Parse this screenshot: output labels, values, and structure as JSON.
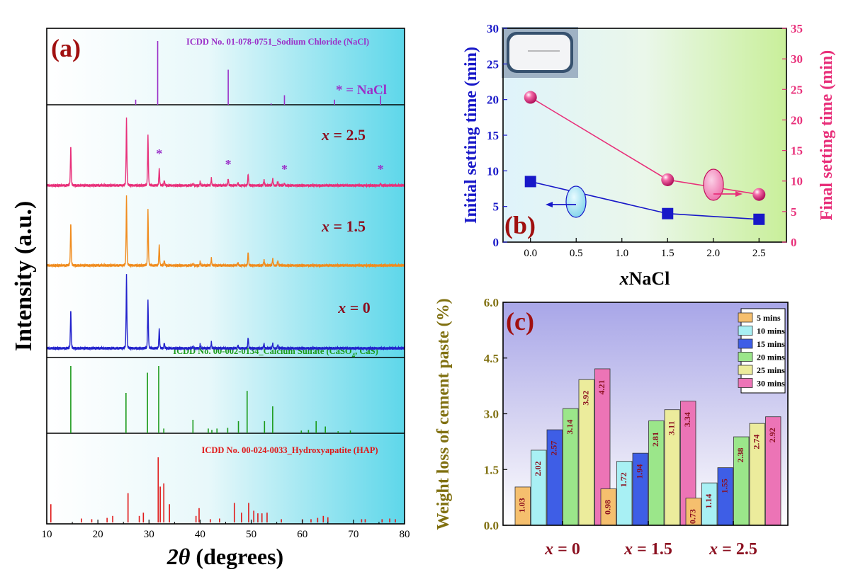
{
  "chart_data": [
    {
      "panel": "a",
      "type": "line",
      "panel_label": "(a)",
      "xlabel": "2θ (degrees)",
      "ylabel": "Intensity (a.u.)",
      "xlim": [
        10,
        80
      ],
      "x_ticks": [
        10,
        20,
        30,
        40,
        50,
        60,
        70,
        80
      ],
      "reference_patterns": [
        {
          "label": "ICDD No. 01-078-0751_Sodium Chloride (NaCl)",
          "color": "#9b30c8",
          "peaks": [
            [
              27.4,
              0.08
            ],
            [
              31.7,
              1.0
            ],
            [
              45.5,
              0.55
            ],
            [
              53.9,
              0.02
            ],
            [
              56.5,
              0.15
            ],
            [
              66.3,
              0.08
            ],
            [
              75.3,
              0.14
            ]
          ]
        },
        {
          "label": "ICDD No. 00-002-0134_Calcium Sulfate (CaSO4, CaS)",
          "color": "#1a9a1a",
          "peaks": [
            [
              14.7,
              1.0
            ],
            [
              25.5,
              0.6
            ],
            [
              29.7,
              0.9
            ],
            [
              31.9,
              1.0
            ],
            [
              32.9,
              0.07
            ],
            [
              38.6,
              0.2
            ],
            [
              41.6,
              0.07
            ],
            [
              42.3,
              0.05
            ],
            [
              43.3,
              0.07
            ],
            [
              45.4,
              0.08
            ],
            [
              47.5,
              0.18
            ],
            [
              49.2,
              0.63
            ],
            [
              52.6,
              0.18
            ],
            [
              54.2,
              0.4
            ],
            [
              59.8,
              0.04
            ],
            [
              61.2,
              0.05
            ],
            [
              62.7,
              0.18
            ],
            [
              64.5,
              0.1
            ],
            [
              67.0,
              0.03
            ],
            [
              69.4,
              0.04
            ]
          ]
        },
        {
          "label": "ICDD No. 00-024-0033_Hydroxyapatite (HAP)",
          "color": "#e01818",
          "peaks": [
            [
              10.8,
              0.28
            ],
            [
              16.8,
              0.06
            ],
            [
              18.8,
              0.05
            ],
            [
              21.8,
              0.07
            ],
            [
              22.9,
              0.1
            ],
            [
              25.9,
              0.45
            ],
            [
              28.1,
              0.1
            ],
            [
              28.9,
              0.15
            ],
            [
              31.8,
              1.0
            ],
            [
              32.2,
              0.55
            ],
            [
              32.9,
              0.6
            ],
            [
              34.0,
              0.28
            ],
            [
              39.2,
              0.1
            ],
            [
              39.8,
              0.22
            ],
            [
              42.0,
              0.05
            ],
            [
              43.8,
              0.06
            ],
            [
              46.7,
              0.3
            ],
            [
              48.1,
              0.15
            ],
            [
              49.5,
              0.3
            ],
            [
              50.5,
              0.18
            ],
            [
              51.3,
              0.14
            ],
            [
              52.1,
              0.14
            ],
            [
              53.1,
              0.15
            ],
            [
              55.9,
              0.05
            ],
            [
              60.0,
              0.05
            ],
            [
              61.7,
              0.05
            ],
            [
              63.0,
              0.07
            ],
            [
              64.1,
              0.1
            ],
            [
              65.0,
              0.08
            ],
            [
              71.6,
              0.05
            ],
            [
              72.3,
              0.05
            ],
            [
              75.6,
              0.05
            ],
            [
              77.1,
              0.06
            ],
            [
              78.2,
              0.05
            ]
          ]
        }
      ],
      "series": [
        {
          "name": "x = 2.5",
          "color": "#e8307a",
          "peaks": [
            [
              14.7,
              0.58
            ],
            [
              25.6,
              0.95
            ],
            [
              29.8,
              0.72
            ],
            [
              32.0,
              0.25
            ],
            [
              33.0,
              0.07
            ],
            [
              38.6,
              0.03
            ],
            [
              40.0,
              0.05
            ],
            [
              42.2,
              0.1
            ],
            [
              45.5,
              0.1
            ],
            [
              47.4,
              0.04
            ],
            [
              49.4,
              0.17
            ],
            [
              52.5,
              0.08
            ],
            [
              54.2,
              0.1
            ],
            [
              55.2,
              0.06
            ],
            [
              56.5,
              0.03
            ],
            [
              75.3,
              0.03
            ]
          ],
          "markers": [
            32.0,
            45.5,
            56.5,
            75.3
          ]
        },
        {
          "name": "x = 1.5",
          "color": "#f08c1e",
          "peaks": [
            [
              14.7,
              0.62
            ],
            [
              25.6,
              0.98
            ],
            [
              29.8,
              0.8
            ],
            [
              32.0,
              0.3
            ],
            [
              33.0,
              0.07
            ],
            [
              38.6,
              0.03
            ],
            [
              40.0,
              0.05
            ],
            [
              42.2,
              0.1
            ],
            [
              47.4,
              0.04
            ],
            [
              49.4,
              0.2
            ],
            [
              52.5,
              0.08
            ],
            [
              54.2,
              0.1
            ],
            [
              55.2,
              0.07
            ]
          ],
          "markers": []
        },
        {
          "name": "x = 0",
          "color": "#2222cc",
          "peaks": [
            [
              14.7,
              0.53
            ],
            [
              25.6,
              0.98
            ],
            [
              29.8,
              0.65
            ],
            [
              32.0,
              0.27
            ],
            [
              33.0,
              0.07
            ],
            [
              38.6,
              0.03
            ],
            [
              40.0,
              0.05
            ],
            [
              42.2,
              0.08
            ],
            [
              47.4,
              0.04
            ],
            [
              49.4,
              0.15
            ],
            [
              52.5,
              0.06
            ],
            [
              54.2,
              0.07
            ],
            [
              55.2,
              0.05
            ]
          ],
          "markers": []
        }
      ],
      "annotation": "* = NaCl",
      "marker_symbol": "*"
    },
    {
      "panel": "b",
      "type": "line",
      "panel_label": "(b)",
      "xlabel_prefix": "x",
      "xlabel_suffix": "NaCl",
      "xlim": [
        -0.3,
        2.8
      ],
      "x_ticks": [
        "0.0",
        "0.5",
        "1.0",
        "1.5",
        "2.0",
        "2.5"
      ],
      "y_left": {
        "label": "Initial setting time (min)",
        "ylim": [
          0,
          30
        ],
        "ticks": [
          "0",
          "5",
          "10",
          "15",
          "20",
          "25",
          "30"
        ],
        "color": "#1818c8"
      },
      "y_right": {
        "label": "Final setting time (min)",
        "ylim": [
          0,
          35
        ],
        "ticks": [
          "0",
          "5",
          "10",
          "15",
          "20",
          "25",
          "30",
          "35"
        ],
        "color": "#e8307a"
      },
      "series": [
        {
          "name": "Initial setting time",
          "axis": "left",
          "color": "#1818c8",
          "marker": "square",
          "x": [
            0.0,
            1.5,
            2.5
          ],
          "y": [
            8.5,
            4.0,
            3.2
          ]
        },
        {
          "name": "Final setting time",
          "axis": "right",
          "color": "#e8307a",
          "marker": "sphere",
          "x": [
            0.0,
            1.5,
            2.5
          ],
          "y": [
            23.7,
            10.2,
            7.8
          ]
        }
      ]
    },
    {
      "panel": "c",
      "type": "bar",
      "panel_label": "(c)",
      "ylabel": "Weight loss of cement paste (%)",
      "ylim": [
        0,
        6
      ],
      "y_ticks": [
        "0.0",
        "1.5",
        "3.0",
        "4.5",
        "6.0"
      ],
      "categories": [
        "x = 0",
        "x = 1.5",
        "x = 2.5"
      ],
      "series": [
        {
          "name": "5 mins",
          "color": "#f5bf6e",
          "values": [
            1.03,
            0.98,
            0.73
          ],
          "labels": [
            "1.03",
            "0.98",
            "0.73"
          ]
        },
        {
          "name": "10 mins",
          "color": "#a8f0f4",
          "values": [
            2.02,
            1.72,
            1.14
          ],
          "labels": [
            "2.02",
            "1.72",
            "1.14"
          ]
        },
        {
          "name": "15 mins",
          "color": "#3e5ee6",
          "values": [
            2.57,
            1.94,
            1.55
          ],
          "labels": [
            "2.57",
            "1.94",
            "1.55"
          ]
        },
        {
          "name": "20 mins",
          "color": "#9be68a",
          "values": [
            3.14,
            2.81,
            2.38
          ],
          "labels": [
            "3.14",
            "2.81",
            "2.38"
          ]
        },
        {
          "name": "25 mins",
          "color": "#ecec9c",
          "values": [
            3.92,
            3.11,
            2.74
          ],
          "labels": [
            "3.92",
            "3.11",
            "2.74"
          ]
        },
        {
          "name": "30 mins",
          "color": "#ec74b6",
          "values": [
            4.21,
            3.34,
            2.92
          ],
          "labels": [
            "4.21",
            "3.34",
            "2.92"
          ]
        }
      ]
    }
  ]
}
